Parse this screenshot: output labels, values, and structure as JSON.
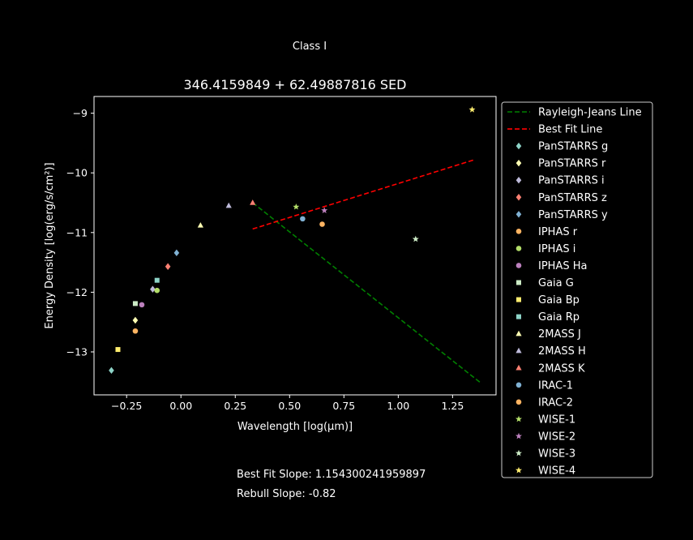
{
  "figure": {
    "suptitle": "Class I",
    "title": "346.4159849 + 62.49887816 SED",
    "notes": [
      "Best Fit Slope: 1.154300241959897",
      "Rebull Slope: -0.82"
    ]
  },
  "chart_data": {
    "type": "scatter",
    "xlabel": "Wavelength [log(μm)]",
    "ylabel": "Energy Density [log(erg/s/cm²)]",
    "xlim": [
      -0.4,
      1.45
    ],
    "ylim": [
      -13.72,
      -8.72
    ],
    "xticks": [
      -0.25,
      0.0,
      0.25,
      0.5,
      0.75,
      1.0,
      1.25
    ],
    "xtick_labels": [
      "−0.25",
      "0.00",
      "0.25",
      "0.50",
      "0.75",
      "1.00",
      "1.25"
    ],
    "yticks": [
      -13,
      -12,
      -11,
      -10,
      -9
    ],
    "ytick_labels": [
      "−13",
      "−12",
      "−11",
      "−10",
      "−9"
    ],
    "grid": false,
    "legend_position": "outside-right",
    "background": "#000000",
    "foreground": "#ffffff",
    "lines": [
      {
        "name": "Rayleigh-Jeans Line",
        "color": "#008000",
        "style": "dashed",
        "x": [
          0.33,
          1.38
        ],
        "y": [
          -10.5,
          -13.52
        ]
      },
      {
        "name": "Best Fit Line",
        "color": "#ff0000",
        "style": "dashed",
        "x": [
          0.33,
          1.35
        ],
        "y": [
          -10.94,
          -9.78
        ]
      }
    ],
    "series": [
      {
        "name": "PanSTARRS g",
        "marker": "diamond",
        "color": "#8dd3c7",
        "x": [
          -0.32
        ],
        "y": [
          -13.31
        ]
      },
      {
        "name": "PanSTARRS r",
        "marker": "diamond",
        "color": "#ffffb3",
        "x": [
          -0.21
        ],
        "y": [
          -12.47
        ]
      },
      {
        "name": "PanSTARRS i",
        "marker": "diamond",
        "color": "#bebada",
        "x": [
          -0.13
        ],
        "y": [
          -11.95
        ]
      },
      {
        "name": "PanSTARRS z",
        "marker": "diamond",
        "color": "#fb8072",
        "x": [
          -0.06
        ],
        "y": [
          -11.57
        ]
      },
      {
        "name": "PanSTARRS y",
        "marker": "diamond",
        "color": "#80b1d3",
        "x": [
          -0.02
        ],
        "y": [
          -11.34
        ]
      },
      {
        "name": "IPHAS r",
        "marker": "circle",
        "color": "#fdb462",
        "x": [
          -0.21
        ],
        "y": [
          -12.65
        ]
      },
      {
        "name": "IPHAS i",
        "marker": "circle",
        "color": "#b3de69",
        "x": [
          -0.11
        ],
        "y": [
          -11.97
        ]
      },
      {
        "name": "IPHAS Ha",
        "marker": "circle",
        "color": "#bc80bd",
        "x": [
          -0.18
        ],
        "y": [
          -12.21
        ]
      },
      {
        "name": "Gaia G",
        "marker": "square",
        "color": "#ccebc5",
        "x": [
          -0.21
        ],
        "y": [
          -12.19
        ]
      },
      {
        "name": "Gaia Bp",
        "marker": "square",
        "color": "#ffed6f",
        "x": [
          -0.29
        ],
        "y": [
          -12.96
        ]
      },
      {
        "name": "Gaia Rp",
        "marker": "square",
        "color": "#8dd3c7",
        "x": [
          -0.11
        ],
        "y": [
          -11.8
        ]
      },
      {
        "name": "2MASS J",
        "marker": "triangle",
        "color": "#ffffb3",
        "x": [
          0.09
        ],
        "y": [
          -10.88
        ]
      },
      {
        "name": "2MASS H",
        "marker": "triangle",
        "color": "#bebada",
        "x": [
          0.22
        ],
        "y": [
          -10.55
        ]
      },
      {
        "name": "2MASS K",
        "marker": "triangle",
        "color": "#fb8072",
        "x": [
          0.33
        ],
        "y": [
          -10.5
        ]
      },
      {
        "name": "IRAC-1",
        "marker": "circle",
        "color": "#80b1d3",
        "x": [
          0.56
        ],
        "y": [
          -10.77
        ]
      },
      {
        "name": "IRAC-2",
        "marker": "circle",
        "color": "#fdb462",
        "x": [
          0.65
        ],
        "y": [
          -10.86
        ]
      },
      {
        "name": "WISE-1",
        "marker": "star",
        "color": "#b3de69",
        "x": [
          0.53
        ],
        "y": [
          -10.57
        ]
      },
      {
        "name": "WISE-2",
        "marker": "star",
        "color": "#bc80bd",
        "x": [
          0.66
        ],
        "y": [
          -10.63
        ]
      },
      {
        "name": "WISE-3",
        "marker": "star",
        "color": "#ccebc5",
        "x": [
          1.08
        ],
        "y": [
          -11.11
        ]
      },
      {
        "name": "WISE-4",
        "marker": "star",
        "color": "#ffed6f",
        "x": [
          1.34
        ],
        "y": [
          -8.94
        ]
      }
    ]
  }
}
